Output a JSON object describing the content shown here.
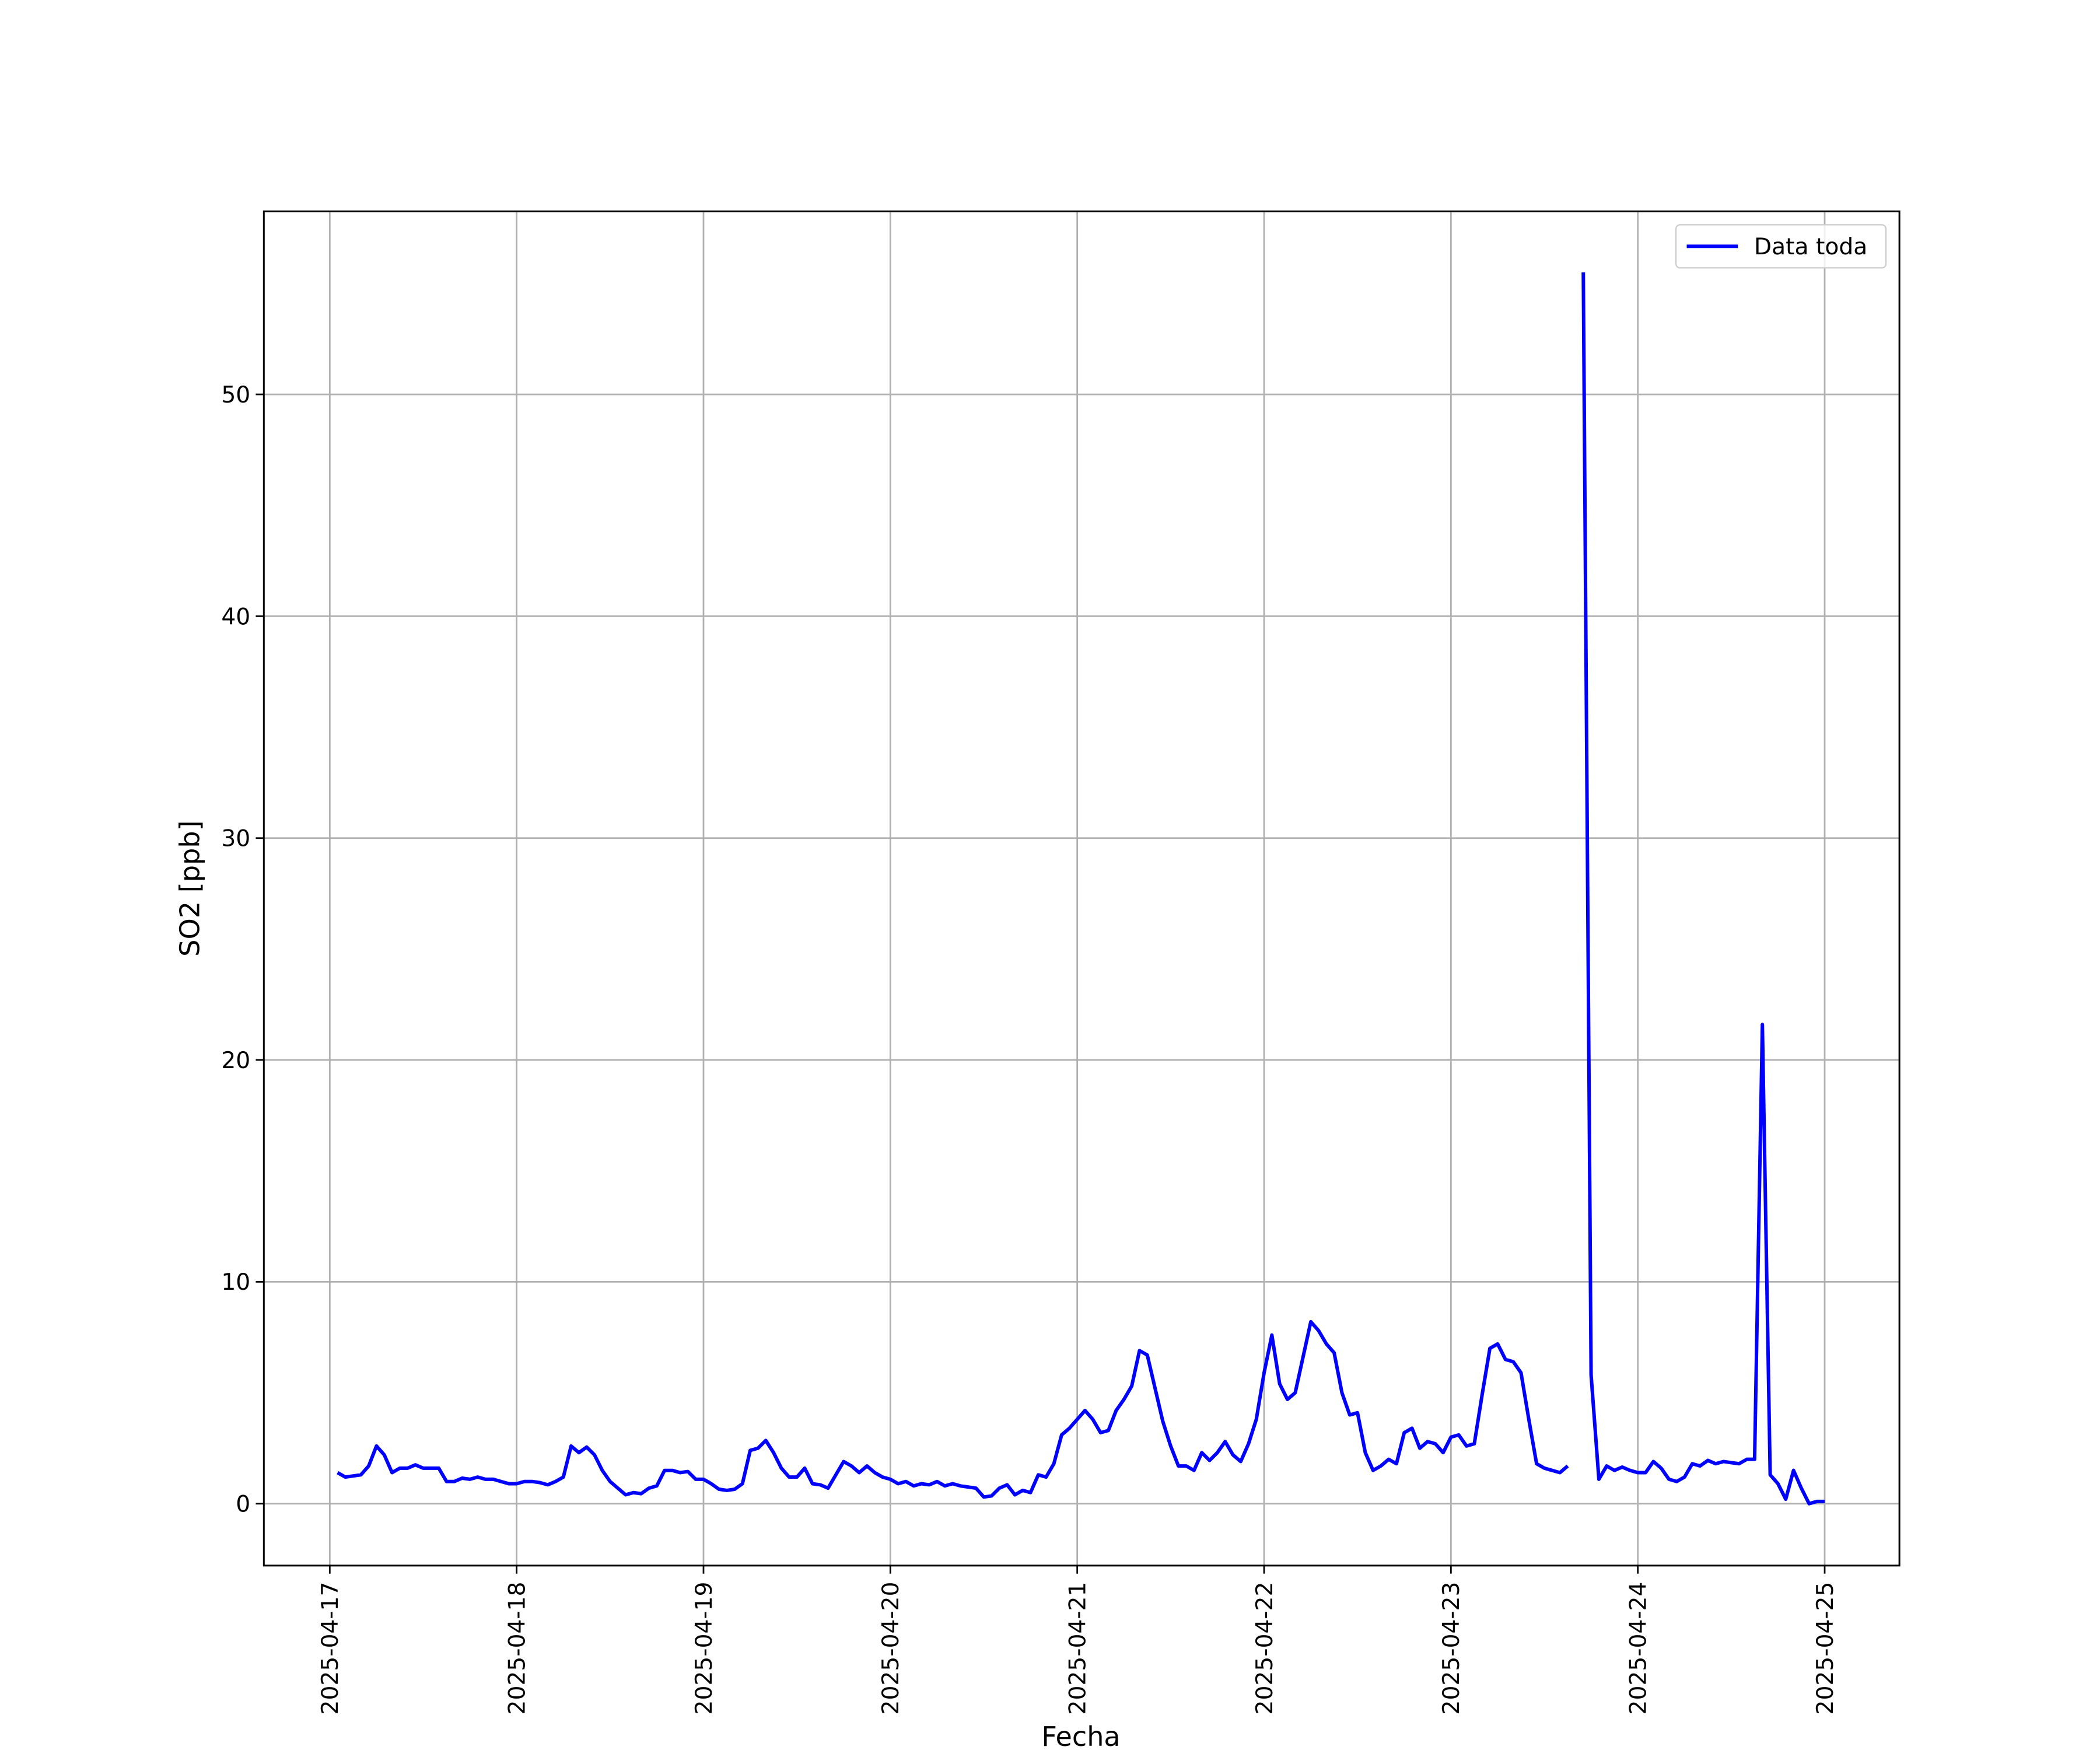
{
  "chart_data": {
    "type": "line",
    "xlabel": "Fecha",
    "ylabel": "SO2 [ppb]",
    "x": [
      "2025-04-17T01:00",
      "2025-04-17T02:00",
      "2025-04-17T03:00",
      "2025-04-17T04:00",
      "2025-04-17T05:00",
      "2025-04-17T06:00",
      "2025-04-17T07:00",
      "2025-04-17T08:00",
      "2025-04-17T09:00",
      "2025-04-17T10:00",
      "2025-04-17T11:00",
      "2025-04-17T12:00",
      "2025-04-17T13:00",
      "2025-04-17T14:00",
      "2025-04-17T15:00",
      "2025-04-17T16:00",
      "2025-04-17T17:00",
      "2025-04-17T18:00",
      "2025-04-17T19:00",
      "2025-04-17T20:00",
      "2025-04-17T21:00",
      "2025-04-17T22:00",
      "2025-04-17T23:00",
      "2025-04-18T00:00",
      "2025-04-18T01:00",
      "2025-04-18T02:00",
      "2025-04-18T03:00",
      "2025-04-18T04:00",
      "2025-04-18T05:00",
      "2025-04-18T06:00",
      "2025-04-18T07:00",
      "2025-04-18T08:00",
      "2025-04-18T09:00",
      "2025-04-18T10:00",
      "2025-04-18T11:00",
      "2025-04-18T12:00",
      "2025-04-18T13:00",
      "2025-04-18T14:00",
      "2025-04-18T15:00",
      "2025-04-18T16:00",
      "2025-04-18T17:00",
      "2025-04-18T18:00",
      "2025-04-18T19:00",
      "2025-04-18T20:00",
      "2025-04-18T21:00",
      "2025-04-18T22:00",
      "2025-04-18T23:00",
      "2025-04-19T00:00",
      "2025-04-19T01:00",
      "2025-04-19T02:00",
      "2025-04-19T03:00",
      "2025-04-19T04:00",
      "2025-04-19T05:00",
      "2025-04-19T06:00",
      "2025-04-19T07:00",
      "2025-04-19T08:00",
      "2025-04-19T09:00",
      "2025-04-19T10:00",
      "2025-04-19T11:00",
      "2025-04-19T12:00",
      "2025-04-19T13:00",
      "2025-04-19T14:00",
      "2025-04-19T15:00",
      "2025-04-19T16:00",
      "2025-04-19T17:00",
      "2025-04-19T18:00",
      "2025-04-19T19:00",
      "2025-04-19T20:00",
      "2025-04-19T21:00",
      "2025-04-19T22:00",
      "2025-04-19T23:00",
      "2025-04-20T00:00",
      "2025-04-20T01:00",
      "2025-04-20T02:00",
      "2025-04-20T03:00",
      "2025-04-20T04:00",
      "2025-04-20T05:00",
      "2025-04-20T06:00",
      "2025-04-20T07:00",
      "2025-04-20T08:00",
      "2025-04-20T09:00",
      "2025-04-20T10:00",
      "2025-04-20T11:00",
      "2025-04-20T12:00",
      "2025-04-20T13:00",
      "2025-04-20T14:00",
      "2025-04-20T15:00",
      "2025-04-20T16:00",
      "2025-04-20T17:00",
      "2025-04-20T18:00",
      "2025-04-20T19:00",
      "2025-04-20T20:00",
      "2025-04-20T21:00",
      "2025-04-20T22:00",
      "2025-04-20T23:00",
      "2025-04-21T00:00",
      "2025-04-21T01:00",
      "2025-04-21T02:00",
      "2025-04-21T03:00",
      "2025-04-21T04:00",
      "2025-04-21T05:00",
      "2025-04-21T06:00",
      "2025-04-21T07:00",
      "2025-04-21T08:00",
      "2025-04-21T09:00",
      "2025-04-21T10:00",
      "2025-04-21T11:00",
      "2025-04-21T12:00",
      "2025-04-21T13:00",
      "2025-04-21T14:00",
      "2025-04-21T15:00",
      "2025-04-21T16:00",
      "2025-04-21T17:00",
      "2025-04-21T18:00",
      "2025-04-21T19:00",
      "2025-04-21T20:00",
      "2025-04-21T21:00",
      "2025-04-21T22:00",
      "2025-04-21T23:00",
      "2025-04-22T00:00",
      "2025-04-22T01:00",
      "2025-04-22T02:00",
      "2025-04-22T03:00",
      "2025-04-22T04:00",
      "2025-04-22T05:00",
      "2025-04-22T06:00",
      "2025-04-22T07:00",
      "2025-04-22T08:00",
      "2025-04-22T09:00",
      "2025-04-22T10:00",
      "2025-04-22T11:00",
      "2025-04-22T12:00",
      "2025-04-22T13:00",
      "2025-04-22T14:00",
      "2025-04-22T15:00",
      "2025-04-22T16:00",
      "2025-04-22T17:00",
      "2025-04-22T18:00",
      "2025-04-22T19:00",
      "2025-04-22T20:00",
      "2025-04-22T21:00",
      "2025-04-22T22:00",
      "2025-04-22T23:00",
      "2025-04-23T00:00",
      "2025-04-23T01:00",
      "2025-04-23T02:00",
      "2025-04-23T03:00",
      "2025-04-23T04:00",
      "2025-04-23T05:00",
      "2025-04-23T06:00",
      "2025-04-23T07:00",
      "2025-04-23T08:00",
      "2025-04-23T09:00",
      "2025-04-23T10:00",
      "2025-04-23T11:00",
      "2025-04-23T12:00",
      "2025-04-23T13:00",
      "2025-04-23T14:00",
      "2025-04-23T15:00",
      "2025-04-23T16:00",
      "2025-04-23T17:00",
      "2025-04-23T18:00",
      "2025-04-23T19:00",
      "2025-04-23T20:00",
      "2025-04-23T21:00",
      "2025-04-23T22:00",
      "2025-04-23T23:00",
      "2025-04-24T00:00",
      "2025-04-24T01:00",
      "2025-04-24T02:00",
      "2025-04-24T03:00",
      "2025-04-24T04:00",
      "2025-04-24T05:00",
      "2025-04-24T06:00",
      "2025-04-24T07:00",
      "2025-04-24T08:00",
      "2025-04-24T09:00",
      "2025-04-24T10:00",
      "2025-04-24T11:00",
      "2025-04-24T12:00",
      "2025-04-24T13:00",
      "2025-04-24T14:00",
      "2025-04-24T15:00",
      "2025-04-24T16:00",
      "2025-04-24T17:00",
      "2025-04-24T18:00",
      "2025-04-24T19:00",
      "2025-04-24T20:00",
      "2025-04-24T21:00",
      "2025-04-24T22:00",
      "2025-04-24T23:00",
      "2025-04-25T00:00"
    ],
    "series": [
      {
        "name": "Data toda",
        "color": "#0000ff",
        "values": [
          1.4,
          1.2,
          1.25,
          1.3,
          1.7,
          2.6,
          2.2,
          1.4,
          1.6,
          1.6,
          1.75,
          1.6,
          1.6,
          1.6,
          1.0,
          1.0,
          1.15,
          1.1,
          1.2,
          1.1,
          1.1,
          1.0,
          0.9,
          0.9,
          1.0,
          1.0,
          0.95,
          0.85,
          1.0,
          1.2,
          2.6,
          2.3,
          2.55,
          2.2,
          1.5,
          1.0,
          0.7,
          0.4,
          0.5,
          0.45,
          0.7,
          0.8,
          1.5,
          1.5,
          1.4,
          1.45,
          1.1,
          1.1,
          0.9,
          0.65,
          0.6,
          0.65,
          0.9,
          2.4,
          2.5,
          2.85,
          2.3,
          1.6,
          1.2,
          1.2,
          1.6,
          0.9,
          0.85,
          0.7,
          1.3,
          1.9,
          1.7,
          1.4,
          1.7,
          1.4,
          1.2,
          1.1,
          0.9,
          1.0,
          0.8,
          0.9,
          0.85,
          1.0,
          0.8,
          0.9,
          0.8,
          0.75,
          0.7,
          0.3,
          0.35,
          0.7,
          0.85,
          0.4,
          0.6,
          0.5,
          1.3,
          1.2,
          1.8,
          3.1,
          3.4,
          3.8,
          4.2,
          3.8,
          3.2,
          3.3,
          4.2,
          4.7,
          5.3,
          6.9,
          6.7,
          5.2,
          3.7,
          2.6,
          1.7,
          1.7,
          1.5,
          2.3,
          1.95,
          2.3,
          2.8,
          2.2,
          1.9,
          2.7,
          3.8,
          5.9,
          7.6,
          5.4,
          4.7,
          5.0,
          6.6,
          8.2,
          7.8,
          7.2,
          6.8,
          5.0,
          4.0,
          4.1,
          2.3,
          1.5,
          1.7,
          2.0,
          1.8,
          3.2,
          3.4,
          2.5,
          2.8,
          2.7,
          2.3,
          3.0,
          3.1,
          2.6,
          2.7,
          4.9,
          7.0,
          7.2,
          6.5,
          6.4,
          5.9,
          3.8,
          1.8,
          1.6,
          1.5,
          1.4,
          1.7,
          null,
          55.5,
          5.8,
          1.1,
          1.7,
          1.5,
          1.65,
          1.5,
          1.4,
          1.4,
          1.9,
          1.6,
          1.1,
          1.0,
          1.2,
          1.8,
          1.7,
          1.95,
          1.8,
          1.9,
          1.85,
          1.8,
          2.0,
          2.0,
          21.6,
          1.3,
          0.9,
          0.2,
          1.5,
          0.7,
          0.0,
          0.1,
          0.1
        ]
      }
    ],
    "xlim": [
      "2025-04-16T15:32",
      "2025-04-25T09:36"
    ],
    "xticks": [
      "2025-04-17",
      "2025-04-18",
      "2025-04-19",
      "2025-04-20",
      "2025-04-21",
      "2025-04-22",
      "2025-04-23",
      "2025-04-24",
      "2025-04-25"
    ],
    "ylim": [
      -2.79,
      58.25
    ],
    "yticks": [
      0,
      10,
      20,
      30,
      40,
      50
    ],
    "grid": true,
    "legend": "upper right"
  }
}
